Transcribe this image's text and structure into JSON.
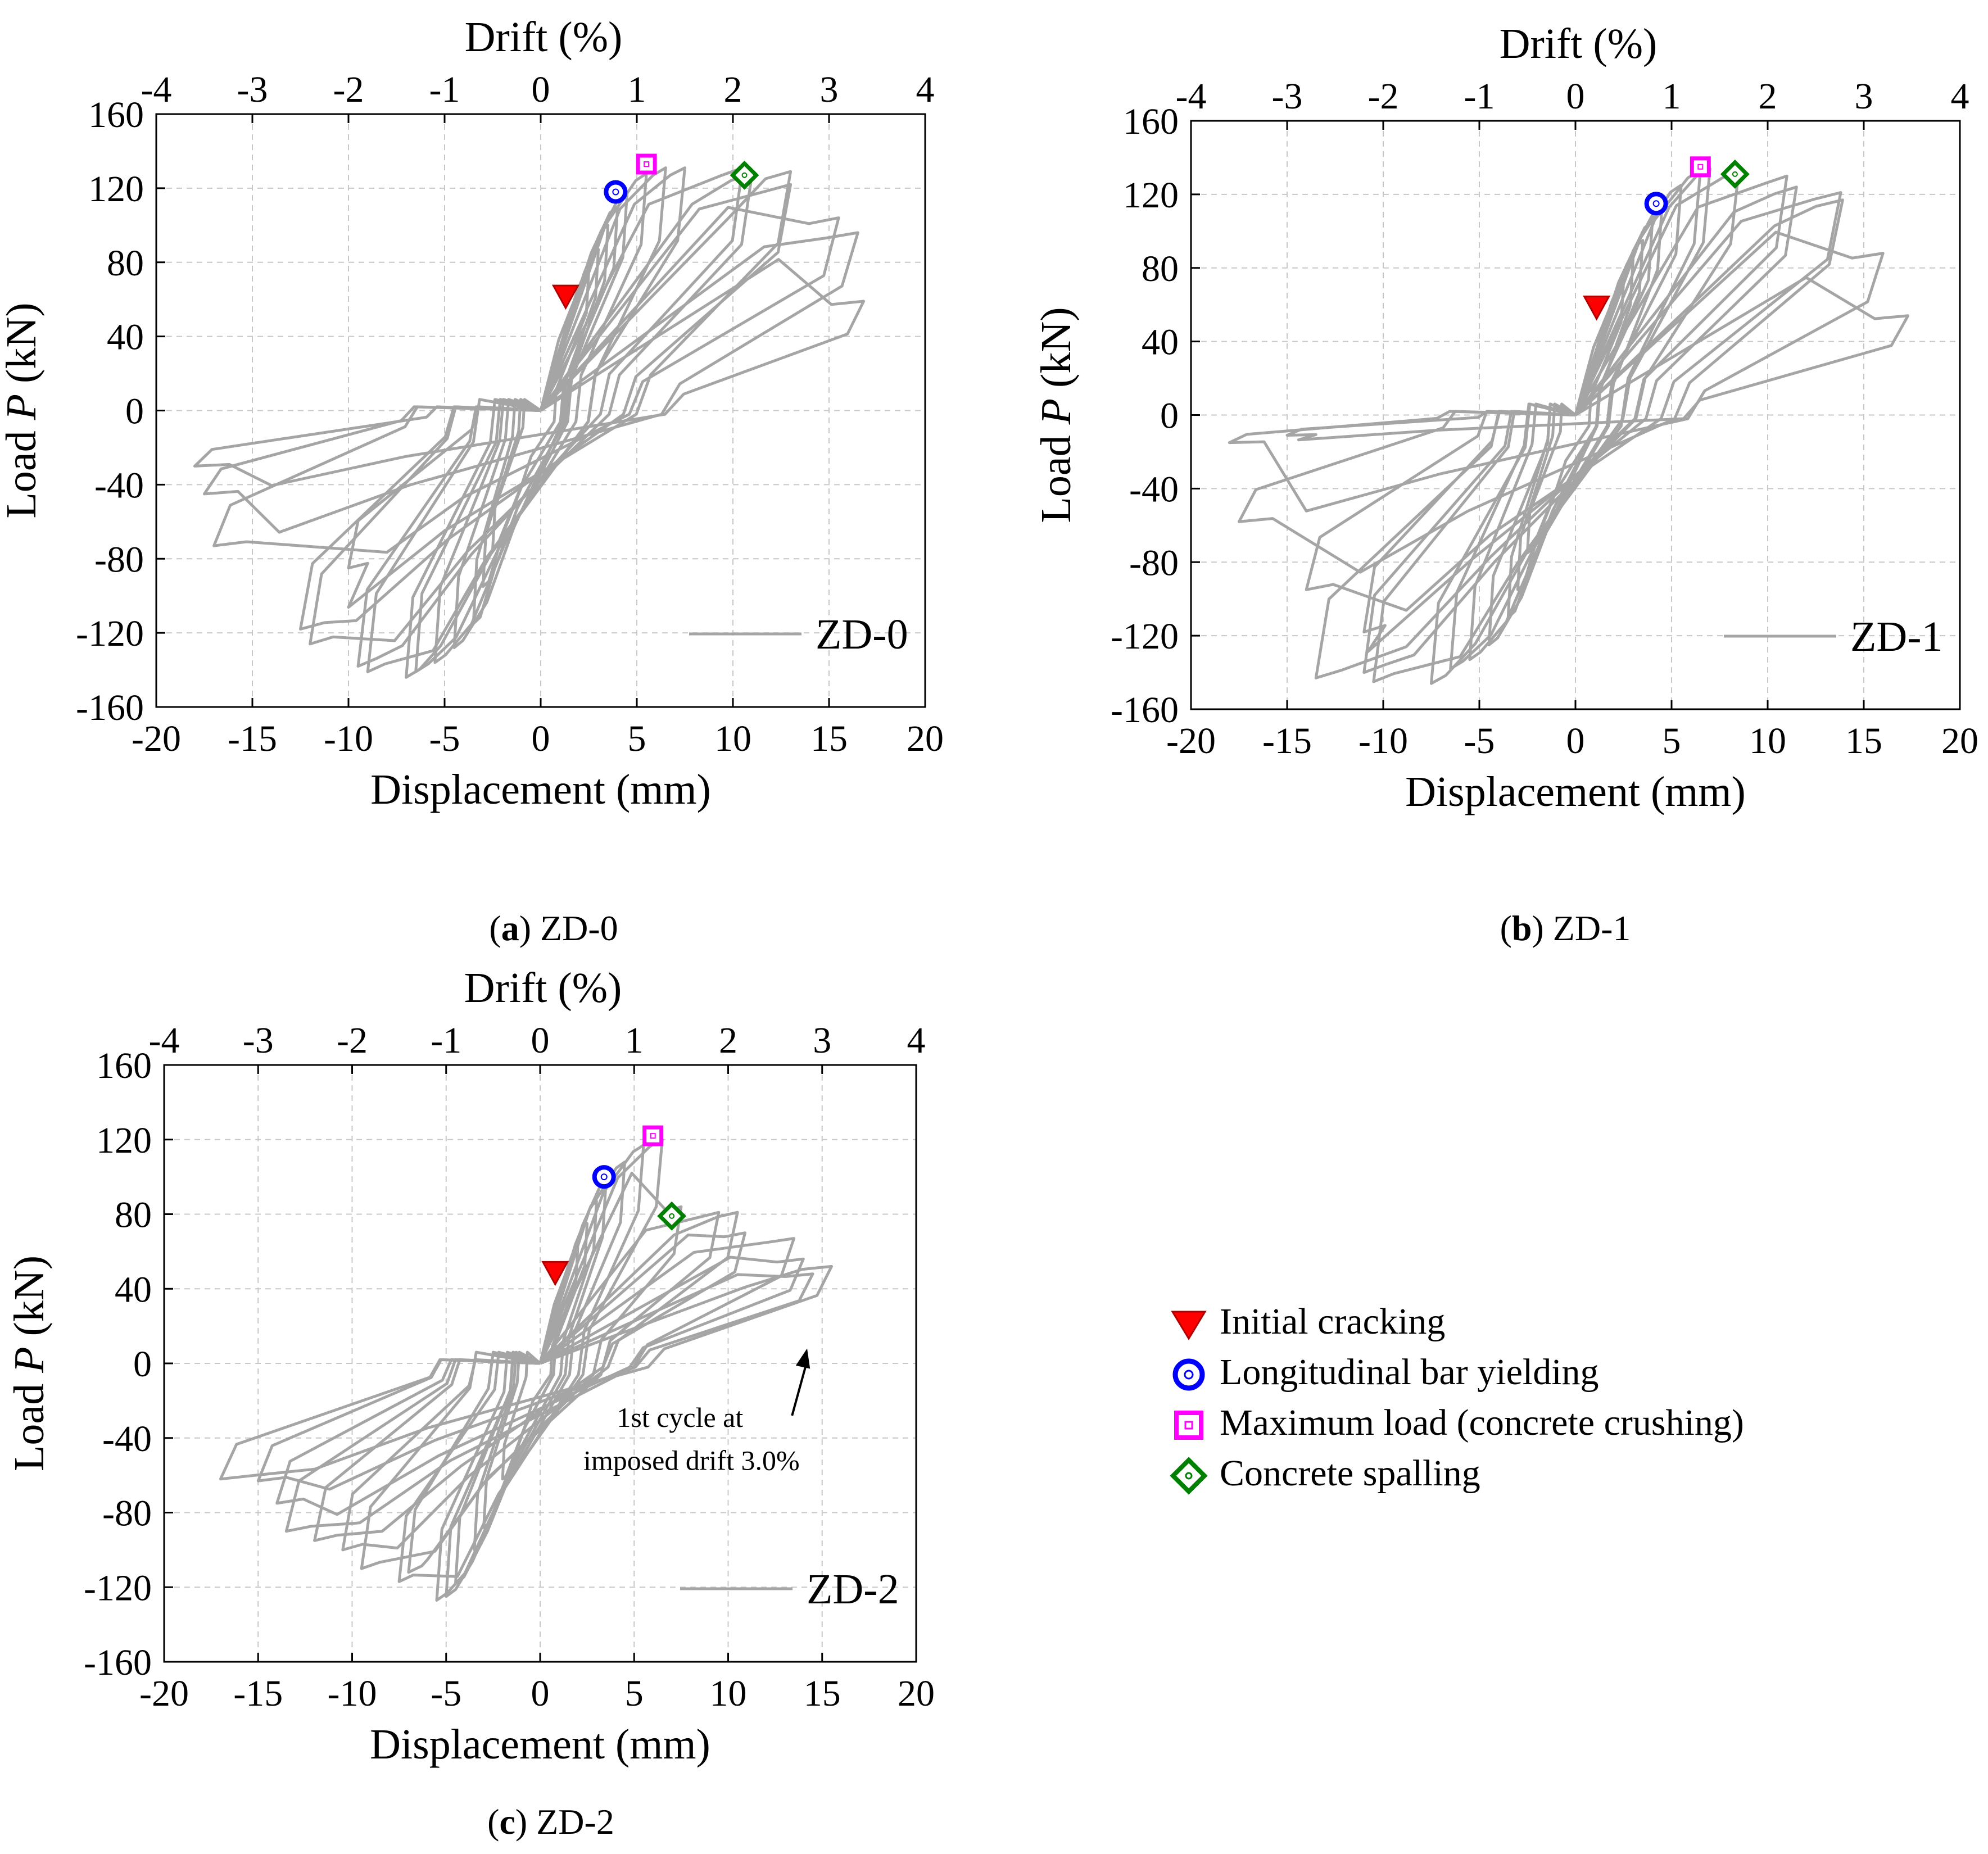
{
  "colors": {
    "curve": "#A5A5A5",
    "grid": "#C8C8C8",
    "cracking": "#FF0000",
    "yielding": "#0000FF",
    "max_load": "#FF00FF",
    "spalling": "#008000"
  },
  "legend": {
    "items": [
      {
        "key": "cracking",
        "label": "Initial cracking",
        "marker": "triangle-down"
      },
      {
        "key": "yielding",
        "label": "Longitudinal bar yielding",
        "marker": "circle"
      },
      {
        "key": "max_load",
        "label": "Maximum load (concrete crushing)",
        "marker": "square"
      },
      {
        "key": "spalling",
        "label": "Concrete spalling",
        "marker": "diamond"
      }
    ]
  },
  "chart_data": [
    {
      "type": "line",
      "id": "a",
      "caption_letter": "a",
      "caption_text": " ZD-0",
      "series_name": "ZD-0",
      "xlabel": "Displacement (mm)",
      "top_xlabel": "Drift (%)",
      "ylabel_prefix": "Load ",
      "ylabel_var": "P",
      "ylabel_suffix": " (kN)",
      "xlim": [
        -20,
        20
      ],
      "ylim": [
        -160,
        160
      ],
      "top_xlim": [
        -4,
        4
      ],
      "xticks": [
        -20,
        -15,
        -10,
        -5,
        0,
        5,
        10,
        15,
        20
      ],
      "top_xticks": [
        -4,
        -3,
        -2,
        -1,
        0,
        1,
        2,
        3,
        4
      ],
      "yticks": [
        -160,
        -120,
        -80,
        -40,
        0,
        40,
        80,
        120,
        160
      ],
      "grid": true,
      "legend_position": "bottom-right",
      "peaks": [
        [
          2.5,
          75
        ],
        [
          3.0,
          87
        ],
        [
          3.5,
          100
        ],
        [
          4.0,
          110
        ],
        [
          4.5,
          118
        ],
        [
          5.5,
          128
        ],
        [
          6.5,
          131
        ],
        [
          7.5,
          131
        ],
        [
          10.5,
          131
        ],
        [
          11.0,
          128
        ],
        [
          13.0,
          122
        ],
        [
          13.0,
          129
        ],
        [
          15.5,
          104
        ],
        [
          16.5,
          96
        ],
        [
          16.8,
          59
        ],
        [
          17.3,
          37
        ]
      ],
      "valleys": [
        [
          -2.5,
          -75
        ],
        [
          -3.0,
          -95
        ],
        [
          -3.5,
          -115
        ],
        [
          -4.5,
          -128
        ],
        [
          -5.5,
          -136
        ],
        [
          -6.5,
          -141
        ],
        [
          -7.0,
          -144
        ],
        [
          -9.0,
          -141
        ],
        [
          -9.5,
          -138
        ],
        [
          -12.0,
          -126
        ],
        [
          -12.5,
          -118
        ],
        [
          -10.0,
          -85
        ],
        [
          -17.0,
          -73
        ],
        [
          -17.5,
          -45
        ],
        [
          -18.0,
          -30
        ]
      ],
      "markers": {
        "cracking": [
          1.3,
          62
        ],
        "yielding": [
          3.9,
          118
        ],
        "max_load": [
          5.5,
          133
        ],
        "spalling": [
          10.6,
          127
        ]
      }
    },
    {
      "type": "line",
      "id": "b",
      "caption_letter": "b",
      "caption_text": " ZD-1",
      "series_name": "ZD-1",
      "xlabel": "Displacement (mm)",
      "top_xlabel": "Drift  (%)",
      "ylabel_prefix": "Load ",
      "ylabel_var": "P",
      "ylabel_suffix": " (kN)",
      "xlim": [
        -20,
        20
      ],
      "ylim": [
        -160,
        160
      ],
      "top_xlim": [
        -4,
        4
      ],
      "xticks": [
        -20,
        -15,
        -10,
        -5,
        0,
        5,
        10,
        15,
        20
      ],
      "top_xticks": [
        -4,
        -3,
        -2,
        -1,
        0,
        1,
        2,
        3,
        4
      ],
      "yticks": [
        -160,
        -120,
        -80,
        -40,
        0,
        40,
        80,
        120,
        160
      ],
      "grid": true,
      "legend_position": "bottom-right",
      "peaks": [
        [
          2.5,
          72
        ],
        [
          3.0,
          85
        ],
        [
          3.5,
          95
        ],
        [
          4.0,
          105
        ],
        [
          4.5,
          113
        ],
        [
          5.5,
          125
        ],
        [
          6.5,
          133
        ],
        [
          7.0,
          134
        ],
        [
          8.5,
          133
        ],
        [
          11.0,
          130
        ],
        [
          11.5,
          124
        ],
        [
          13.8,
          121
        ],
        [
          13.9,
          117
        ],
        [
          16.0,
          88
        ],
        [
          17.3,
          54
        ],
        [
          16.5,
          31
        ],
        [
          17.7,
          18
        ]
      ],
      "valleys": [
        [
          -2.5,
          -75
        ],
        [
          -3.0,
          -95
        ],
        [
          -3.5,
          -110
        ],
        [
          -4.5,
          -125
        ],
        [
          -5.5,
          -133
        ],
        [
          -6.5,
          -138
        ],
        [
          -7.5,
          -146
        ],
        [
          -10.5,
          -145
        ],
        [
          -11.0,
          -140
        ],
        [
          -13.5,
          -143
        ],
        [
          -11.0,
          -118
        ],
        [
          -14.0,
          -95
        ],
        [
          -17.5,
          -58
        ],
        [
          -18.0,
          -15
        ],
        [
          -15.0,
          -11
        ]
      ],
      "markers": {
        "cracking": [
          1.1,
          59
        ],
        "yielding": [
          4.2,
          115
        ],
        "max_load": [
          6.5,
          135
        ],
        "spalling": [
          8.3,
          131
        ]
      }
    },
    {
      "type": "line",
      "id": "c",
      "caption_letter": "c",
      "caption_text": " ZD-2",
      "series_name": "ZD-2",
      "xlabel": "Displacement (mm)",
      "top_xlabel": "Drift (%)",
      "ylabel_prefix": "Load ",
      "ylabel_var": "P",
      "ylabel_suffix": " (kN)",
      "xlim": [
        -20,
        20
      ],
      "ylim": [
        -160,
        160
      ],
      "top_xlim": [
        -4,
        4
      ],
      "xticks": [
        -20,
        -15,
        -10,
        -5,
        0,
        5,
        10,
        15,
        20
      ],
      "top_xticks": [
        -4,
        -3,
        -2,
        -1,
        0,
        1,
        2,
        3,
        4
      ],
      "yticks": [
        -160,
        -120,
        -80,
        -40,
        0,
        40,
        80,
        120,
        160
      ],
      "grid": true,
      "legend_position": "bottom-right",
      "peaks": [
        [
          2.0,
          62
        ],
        [
          2.5,
          75
        ],
        [
          3.0,
          87
        ],
        [
          3.5,
          97
        ],
        [
          4.5,
          108
        ],
        [
          5.5,
          117
        ],
        [
          6.5,
          120
        ],
        [
          7.5,
          84
        ],
        [
          9.5,
          81
        ],
        [
          10.5,
          81
        ],
        [
          10.9,
          70
        ],
        [
          13.5,
          67
        ],
        [
          14.0,
          56
        ],
        [
          14.5,
          48
        ],
        [
          15.5,
          52
        ],
        [
          17.0,
          52
        ],
        [
          16.0,
          26
        ]
      ],
      "valleys": [
        [
          -2.0,
          -62
        ],
        [
          -3.0,
          -88
        ],
        [
          -3.5,
          -100
        ],
        [
          -4.5,
          -118
        ],
        [
          -5.0,
          -125
        ],
        [
          -5.5,
          -127
        ],
        [
          -7.5,
          -117
        ],
        [
          -7.0,
          -112
        ],
        [
          -9.5,
          -110
        ],
        [
          -10.5,
          -100
        ],
        [
          -12.0,
          -95
        ],
        [
          -13.5,
          -90
        ],
        [
          -14.0,
          -75
        ],
        [
          -15.0,
          -63
        ],
        [
          -17.0,
          -62
        ]
      ],
      "annotation": {
        "line1": "1st cycle at",
        "line2": "imposed drift 3.0%",
        "arrow_to": [
          14.2,
          8
        ],
        "arrow_from": [
          13.4,
          -28
        ]
      },
      "markers": {
        "cracking": [
          0.8,
          49
        ],
        "yielding": [
          3.4,
          100
        ],
        "max_load": [
          6.0,
          122
        ],
        "spalling": [
          7.0,
          79
        ]
      }
    }
  ]
}
